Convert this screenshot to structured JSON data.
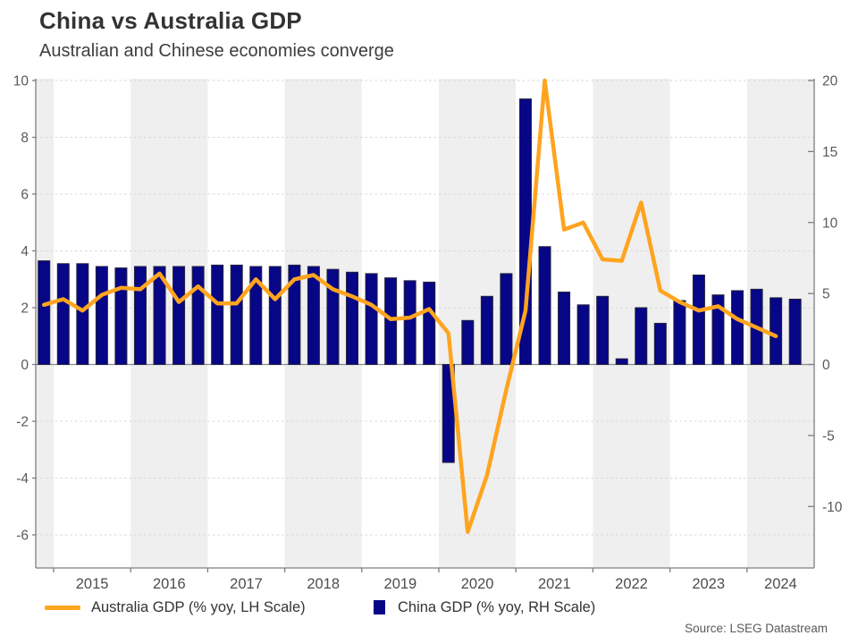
{
  "header": {
    "title": "China vs Australia GDP",
    "subtitle": "Australian and Chinese economies converge"
  },
  "source_note": "Source: LSEG Datastream",
  "legend": {
    "australia_label": "Australia GDP (% yoy, LH Scale)",
    "china_label": "China GDP (% yoy, RH Scale)"
  },
  "colors": {
    "australia_line": "#FFA41E",
    "china_bar_fill": "#060687",
    "china_bar_stroke": "#24243C",
    "band_gray": "#EFEFEF",
    "band_white": "#FFFFFF",
    "gridline": "#D7D7D7",
    "zero_line": "#8C8C8C",
    "axis_line": "#7F7F7F",
    "tick_label": "#595959",
    "year_label": "#4D4D4D"
  },
  "chart_data": {
    "type": "bar+line dual-axis",
    "frequency": "quarterly",
    "start_period": "2014 Q4",
    "title": "China vs Australia GDP",
    "subtitle": "Australian and Chinese economies converge",
    "x_year_labels": [
      "2015",
      "2016",
      "2017",
      "2018",
      "2019",
      "2020",
      "2021",
      "2022",
      "2023",
      "2024"
    ],
    "left_axis": {
      "label": "Australia GDP (% yoy, LH Scale)",
      "ticks": [
        10,
        8,
        6,
        4,
        2,
        0,
        -2,
        -4,
        -6
      ],
      "range_shown": [
        -7.2,
        10
      ]
    },
    "right_axis": {
      "label": "China GDP (% yoy, RH Scale)",
      "ticks": [
        20,
        15,
        10,
        5,
        0,
        -5,
        -10
      ],
      "range_shown": [
        -14.3,
        20
      ]
    },
    "series": [
      {
        "name": "Australia GDP (% yoy, LH Scale)",
        "type": "line",
        "axis": "left",
        "start_period": "2014 Q4",
        "values": [
          2.1,
          2.3,
          1.9,
          2.45,
          2.7,
          2.65,
          3.2,
          2.2,
          2.75,
          2.15,
          2.15,
          3.0,
          2.3,
          3.0,
          3.15,
          2.65,
          2.4,
          2.1,
          1.6,
          1.65,
          1.95,
          1.1,
          -5.9,
          -3.9,
          -0.9,
          1.9,
          10.0,
          4.75,
          5.0,
          3.7,
          3.65,
          5.7,
          2.6,
          2.2,
          1.9,
          2.05,
          1.6,
          1.3,
          1.0
        ]
      },
      {
        "name": "China GDP (% yoy, RH Scale)",
        "type": "bar",
        "axis": "right",
        "start_period": "2014 Q4",
        "values": [
          7.3,
          7.1,
          7.1,
          6.9,
          6.8,
          6.9,
          6.9,
          6.9,
          6.9,
          7.0,
          7.0,
          6.9,
          6.9,
          7.0,
          6.9,
          6.7,
          6.5,
          6.4,
          6.1,
          5.9,
          5.8,
          -6.9,
          3.1,
          4.8,
          6.4,
          18.7,
          8.3,
          5.1,
          4.2,
          4.8,
          0.4,
          4.0,
          2.9,
          4.5,
          6.3,
          4.9,
          5.2,
          5.3,
          4.7,
          4.6
        ]
      }
    ],
    "grid": "horizontal dashed at left-axis even values, alternating yearly background bands",
    "legend_position": "bottom"
  }
}
